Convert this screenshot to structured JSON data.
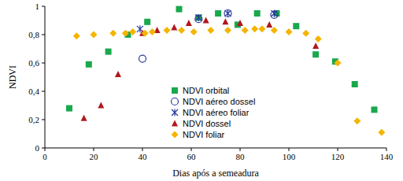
{
  "chart_data": {
    "type": "scatter",
    "x_label": "Dias após a semeadura",
    "y_label": "NDVI",
    "xlim": [
      0,
      140
    ],
    "xticks": [
      0,
      20,
      40,
      60,
      80,
      100,
      120,
      140
    ],
    "ylim": [
      0,
      1
    ],
    "yticks": [
      0,
      {
        "value": 0.2,
        "label": "0,2"
      },
      {
        "value": 0.4,
        "label": "0,4"
      },
      {
        "value": 0.6,
        "label": "0,6"
      },
      {
        "value": 0.8,
        "label": "0,8"
      },
      1
    ],
    "grid": false,
    "legend": "lower center",
    "series": [
      {
        "name": "NDVI orbital",
        "color": "#1aa84c",
        "marker": "square",
        "x": [
          10,
          18,
          26,
          34,
          42,
          55,
          63,
          71,
          79,
          87,
          95,
          103,
          111,
          119,
          127,
          135
        ],
        "values": [
          0.28,
          0.59,
          0.68,
          0.8,
          0.89,
          0.98,
          0.92,
          0.95,
          0.87,
          0.95,
          0.95,
          0.86,
          0.66,
          0.61,
          0.45,
          0.27
        ]
      },
      {
        "name": "NDVI aéreo dossel",
        "color": "#2b3a9e",
        "marker": "circle-open",
        "x": [
          40,
          63,
          75,
          94
        ],
        "values": [
          0.63,
          0.91,
          0.95,
          0.94
        ]
      },
      {
        "name": "NDVI aéreo foliar",
        "color": "#2b3a9e",
        "marker": "x",
        "x": [
          39,
          63,
          75,
          94
        ],
        "values": [
          0.84,
          0.92,
          0.95,
          0.95
        ]
      },
      {
        "name": "NDVI dossel",
        "color": "#b0181c",
        "marker": "triangle",
        "x": [
          16,
          23,
          30,
          40,
          46,
          53,
          59,
          66,
          74,
          80,
          92,
          111
        ],
        "values": [
          0.21,
          0.3,
          0.52,
          0.81,
          0.83,
          0.85,
          0.88,
          0.9,
          0.89,
          0.88,
          0.87,
          0.72
        ]
      },
      {
        "name": "NDVI foliar",
        "color": "#f5b400",
        "marker": "diamond",
        "x": [
          13,
          20,
          28,
          33,
          36,
          41,
          44,
          50,
          56,
          61,
          68,
          75,
          82,
          86,
          89,
          94,
          100,
          107,
          112,
          120,
          128,
          138
        ],
        "values": [
          0.79,
          0.8,
          0.81,
          0.81,
          0.82,
          0.81,
          0.82,
          0.83,
          0.83,
          0.82,
          0.83,
          0.83,
          0.83,
          0.84,
          0.84,
          0.83,
          0.82,
          0.81,
          0.77,
          0.6,
          0.19,
          0.11
        ]
      }
    ]
  }
}
